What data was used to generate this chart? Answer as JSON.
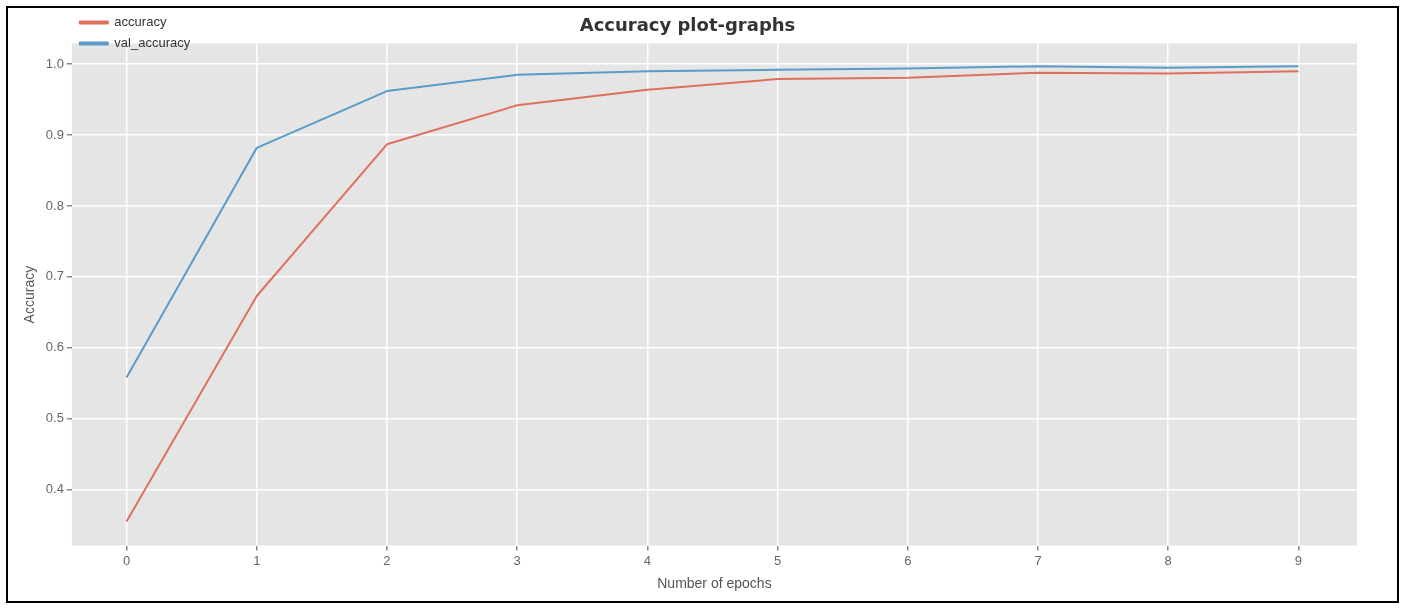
{
  "chart_data": {
    "type": "line",
    "title": "Accuracy plot-graphs",
    "xlabel": "Number of epochs",
    "ylabel": "Accuracy",
    "x": [
      0,
      1,
      2,
      3,
      4,
      5,
      6,
      7,
      8,
      9
    ],
    "series": [
      {
        "name": "accuracy",
        "color": "#e0705e",
        "values": [
          0.355,
          0.673,
          0.887,
          0.942,
          0.964,
          0.979,
          0.981,
          0.988,
          0.987,
          0.99
        ]
      },
      {
        "name": "val_accuracy",
        "color": "#5b9bc8",
        "values": [
          0.558,
          0.882,
          0.962,
          0.985,
          0.99,
          0.992,
          0.994,
          0.997,
          0.995,
          0.997
        ]
      }
    ],
    "xlim": [
      -0.42,
      9.45
    ],
    "xticks": [
      0,
      1,
      2,
      3,
      4,
      5,
      6,
      7,
      8,
      9
    ],
    "ylim": [
      0.321,
      1.029
    ],
    "yticks": [
      {
        "value": 0.4,
        "label": "0.4"
      },
      {
        "value": 0.5,
        "label": "0.5"
      },
      {
        "value": 0.6,
        "label": "0.6"
      },
      {
        "value": 0.7,
        "label": "0.7"
      },
      {
        "value": 0.8,
        "label": "0.8"
      },
      {
        "value": 0.9,
        "label": "0.9"
      },
      {
        "value": 1.0,
        "label": "1.0"
      }
    ],
    "grid": true,
    "legend": "top left",
    "marker": "none",
    "line_style": "solid"
  }
}
